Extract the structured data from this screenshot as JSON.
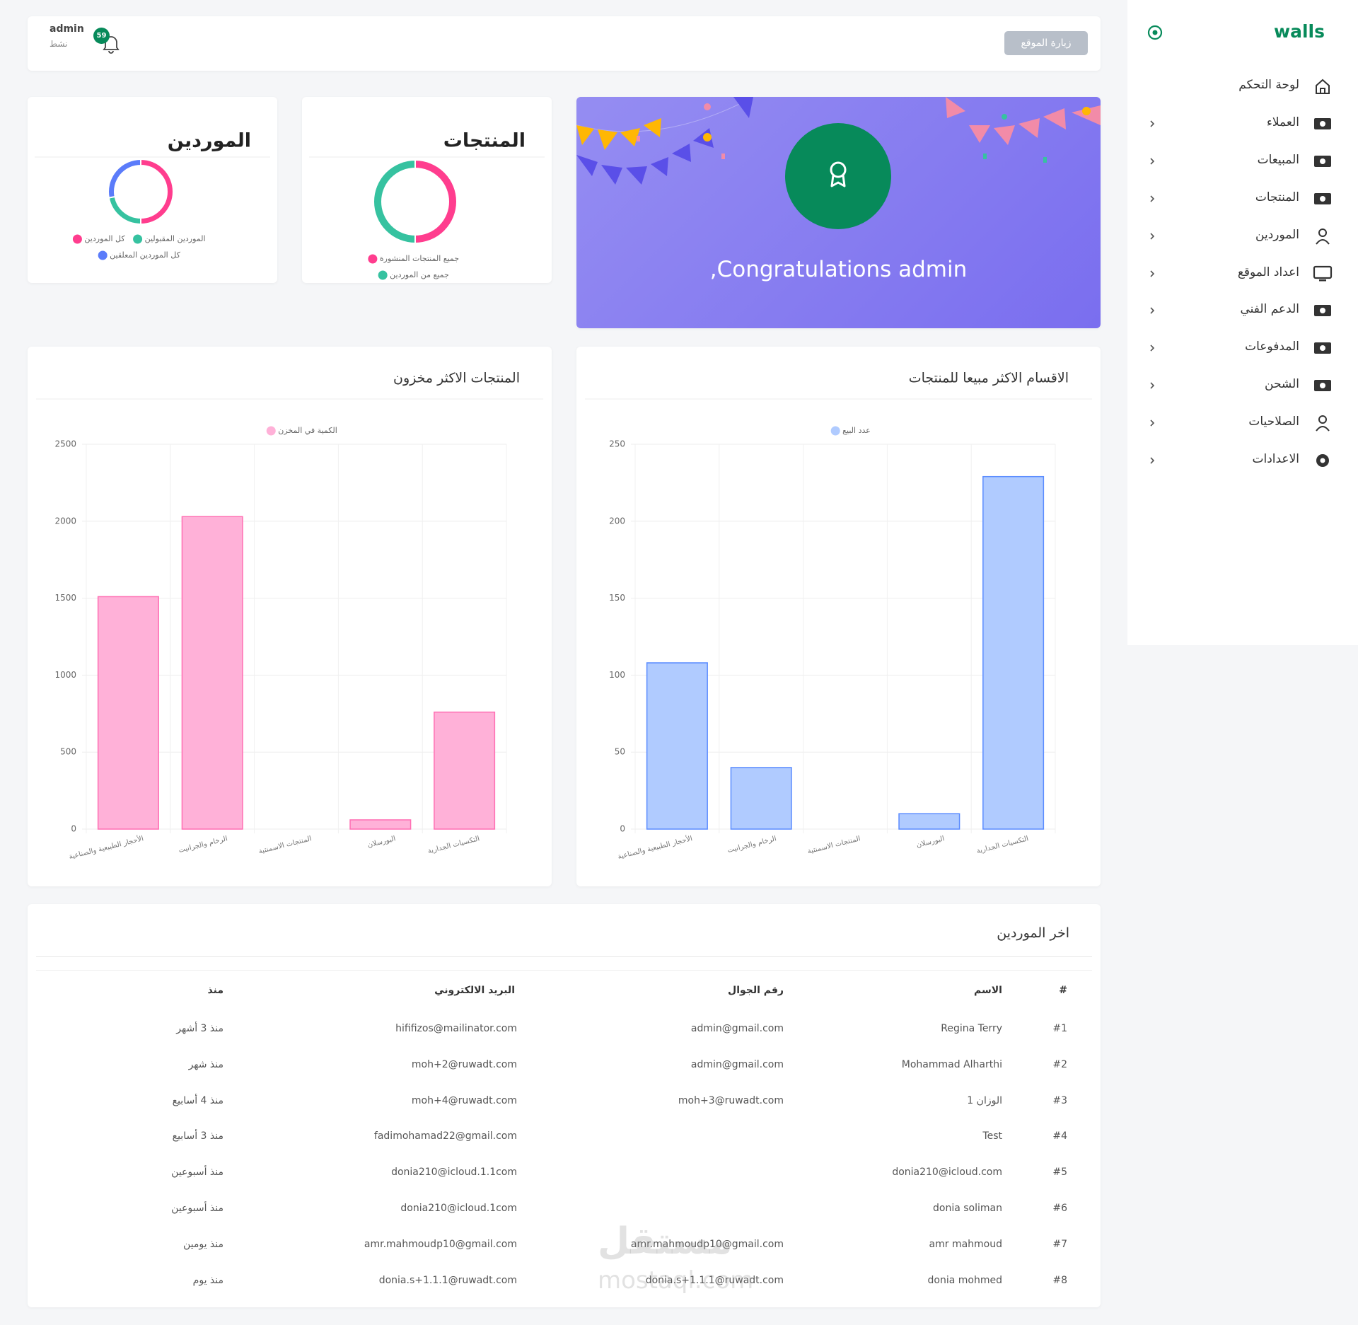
{
  "sidebar": {
    "brand": "walls",
    "menu": [
      "لوحة التحكم",
      "العملاء",
      "المبيعات",
      "المنتجات",
      "الموردين",
      "اعداد الموقع",
      "الدعم الفني",
      "المدفوعات",
      "الشحن",
      "الصلاحيات",
      "الاعدادات"
    ]
  },
  "topbar": {
    "visit_button": "زيارة الموقع",
    "user_name": "admin",
    "user_status": "نشط",
    "notifications": 59
  },
  "welcome": {
    "text": "Congratulations admin,"
  },
  "chart_data": [
    {
      "type": "doughnut",
      "title": "الموردين",
      "categories": [
        "كل الموردين",
        "الموردين المقبولين",
        "كل الموردين المعلقين"
      ],
      "values": [
        50,
        22,
        28
      ],
      "colors": [
        "#ff3d8e",
        "#36c2a0",
        "#5b7cfa"
      ]
    },
    {
      "type": "doughnut",
      "title": "المنتجات",
      "categories": [
        "جميع المنتجات المنشورة",
        "جميع من الموردين"
      ],
      "values": [
        50,
        50
      ],
      "colors": [
        "#ff3d8e",
        "#36c2a0"
      ]
    },
    {
      "type": "bar",
      "title": "المنتجات الاكثر مخزون",
      "categories": [
        "الأحجار الطبيعية والصناعية",
        "الرخام والجرانيت",
        "المنتجات الاسمنتية",
        "البورسلان",
        "التكسيات الجدارية"
      ],
      "series": [
        {
          "name": "الكمية في المخزن",
          "color": "#ffb1d8",
          "border": "#ff6fb3",
          "values": [
            1510,
            2030,
            0,
            60,
            760
          ]
        }
      ],
      "ylim": [
        0,
        2500
      ],
      "yticks": [
        0,
        500,
        1000,
        1500,
        2000,
        2500
      ],
      "grid": true
    },
    {
      "type": "bar",
      "title": "الاقسام الاكثر مبيعا للمنتجات",
      "categories": [
        "الأحجار الطبيعية والصناعية",
        "الرخام والجرانيت",
        "المنتجات الاسمنتية",
        "البورسلان",
        "التكسيات الجدارية"
      ],
      "series": [
        {
          "name": "عدد البيع",
          "color": "#b0cbff",
          "border": "#5b8cff",
          "values": [
            108,
            40,
            0,
            10,
            229
          ]
        }
      ],
      "ylim": [
        0,
        250
      ],
      "yticks": [
        0,
        50,
        100,
        150,
        200,
        250
      ],
      "grid": true
    }
  ],
  "table": {
    "title": "اخر الموردين",
    "headers": [
      "#",
      "الاسم",
      "رقم الجوال",
      "البريد الالكتروني",
      "منذ"
    ],
    "rows": [
      [
        "#1",
        "Regina Terry",
        "admin@gmail.com",
        "hififizos@mailinator.com",
        "منذ 3 أشهر"
      ],
      [
        "#2",
        "Mohammad Alharthi",
        "admin@gmail.com",
        "moh+2@ruwadt.com",
        "منذ شهر"
      ],
      [
        "#3",
        "الوزان 1",
        "moh+3@ruwadt.com",
        "moh+4@ruwadt.com",
        "منذ 4 أسابيع"
      ],
      [
        "#4",
        "Test",
        null,
        "fadimohamad22@gmail.com",
        "منذ 3 أسابيع"
      ],
      [
        "#5",
        "donia210@icloud.com",
        null,
        "donia210@icloud.1.1com",
        "منذ أسبوعين"
      ],
      [
        "#6",
        "donia soliman",
        null,
        "donia210@icloud.1com",
        "منذ أسبوعين"
      ],
      [
        "#7",
        "amr mahmoud",
        "amr.mahmoudp10@gmail.com",
        "amr.mahmoudp10@gmail.com",
        "منذ يومين"
      ],
      [
        "#8",
        "donia mohmed",
        "donia.s+1.1.1@ruwadt.com",
        "donia.s+1.1.1@ruwadt.com",
        "منذ يوم"
      ]
    ]
  },
  "watermark": [
    "مستقل",
    "mostaql.com"
  ]
}
